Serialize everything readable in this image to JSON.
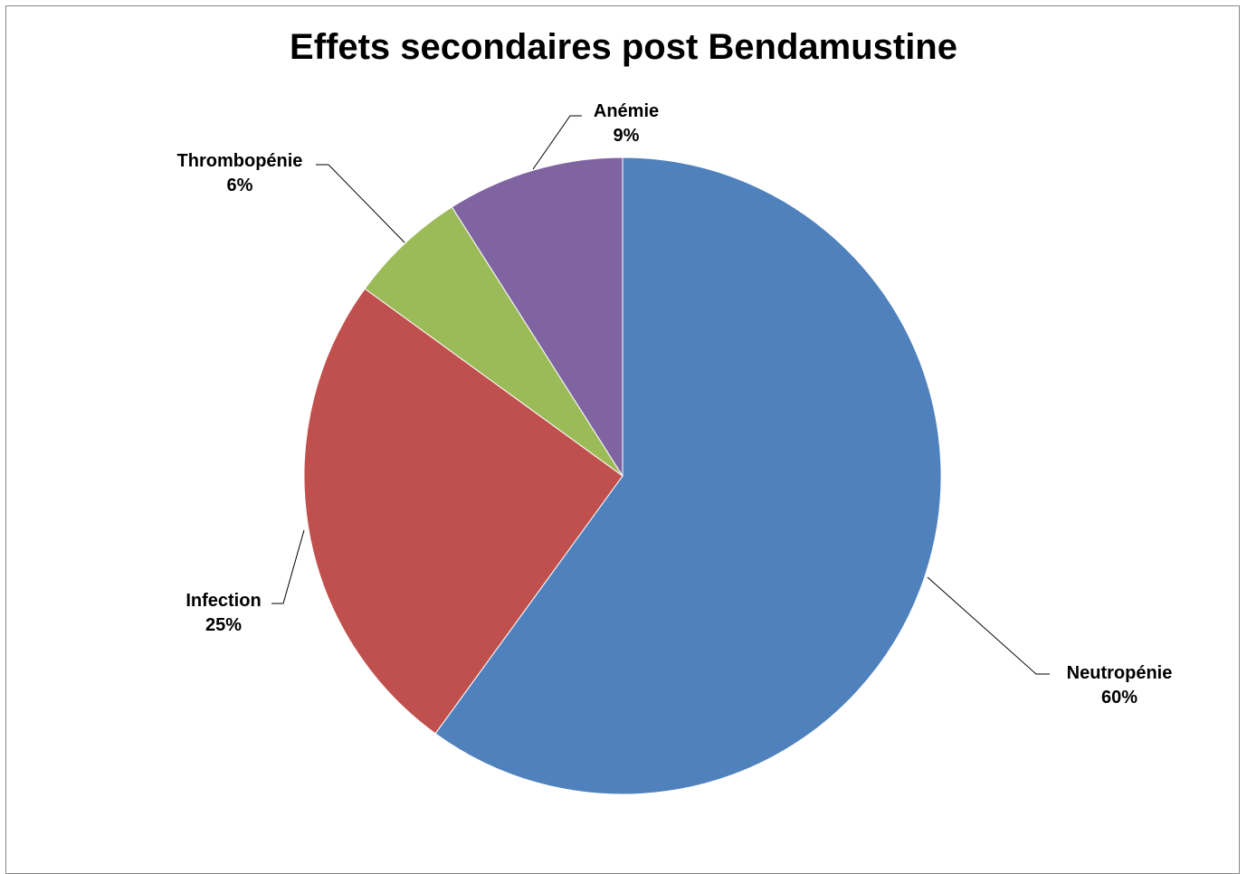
{
  "chart_data": {
    "type": "pie",
    "title": "Effets secondaires post Bendamustine",
    "categories": [
      "Neutropénie",
      "Infection",
      "Thrombopénie",
      "Anémie"
    ],
    "values": [
      60,
      25,
      6,
      9
    ],
    "value_labels": [
      "60%",
      "25%",
      "6%",
      "9%"
    ],
    "colors": [
      "#4F81BD",
      "#C0504D",
      "#9BBB59",
      "#8064A2"
    ],
    "start_angle_deg": 0,
    "direction": "clockwise",
    "legend": "none"
  }
}
